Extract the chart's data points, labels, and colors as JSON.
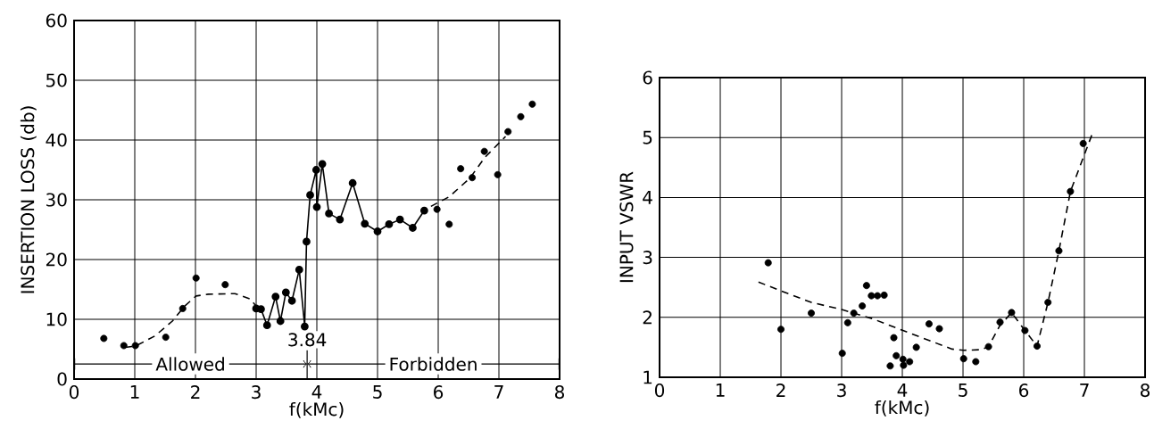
{
  "chart_data": [
    {
      "type": "line",
      "xlabel": "f(kMc)",
      "ylabel": "INSERTION LOSS (db)",
      "xlim": [
        0,
        8
      ],
      "ylim": [
        0,
        60
      ],
      "xticks": [
        0,
        1,
        2,
        3,
        4,
        5,
        6,
        7,
        8
      ],
      "yticks": [
        0,
        10,
        20,
        30,
        40,
        50,
        60
      ],
      "grid": true,
      "annotations": [
        "Allowed",
        "Forbidden"
      ],
      "ref_lines": [
        {
          "axis": "x",
          "value": 3.84,
          "label": "3.84"
        }
      ],
      "series": [
        {
          "type": "scatter",
          "color": "#000000",
          "marker": "circle",
          "x": [
            0.49,
            0.82,
            1.01,
            1.51,
            1.79,
            2.01,
            2.49,
            5.98,
            6.18,
            6.37,
            6.56,
            6.76,
            6.98,
            7.15,
            7.36,
            7.55
          ],
          "values": [
            6.8,
            5.6,
            5.6,
            7.0,
            11.8,
            16.9,
            15.8,
            28.4,
            25.9,
            35.2,
            33.7,
            38.1,
            34.2,
            41.4,
            43.9,
            46.0
          ]
        },
        {
          "color": "#000000",
          "marker": "circle",
          "line_style": "solid",
          "x": [
            3.0,
            3.08,
            3.18,
            3.32,
            3.4,
            3.49,
            3.59,
            3.71,
            3.8,
            3.83,
            3.89,
            3.99,
            4.0,
            4.09,
            4.2,
            4.38,
            4.59,
            4.79,
            5.0,
            5.19,
            5.37,
            5.58,
            5.77
          ],
          "values": [
            11.8,
            11.7,
            9.0,
            13.8,
            9.7,
            14.5,
            13.1,
            18.3,
            8.8,
            23.0,
            30.8,
            35.0,
            28.8,
            36.0,
            27.7,
            26.7,
            32.8,
            26.0,
            24.7,
            25.9,
            26.7,
            25.3,
            28.2
          ]
        },
        {
          "color": "#000000",
          "marker": "none",
          "line_style": "dashed",
          "x": [
            0.84,
            1.01,
            1.33,
            1.62,
            1.82,
            2.01,
            2.21,
            2.65,
            2.9,
            3.0
          ],
          "values": [
            5.3,
            5.5,
            7.2,
            9.7,
            12.2,
            13.9,
            14.2,
            14.3,
            13.4,
            12.2
          ]
        },
        {
          "color": "#000000",
          "marker": "none",
          "line_style": "dashed",
          "x": [
            5.88,
            6.18,
            6.52,
            6.77,
            7.11
          ],
          "values": [
            28.9,
            30.5,
            33.6,
            37.1,
            40.6
          ]
        }
      ]
    },
    {
      "type": "line",
      "xlabel": "f(kMc)",
      "ylabel": "INPUT VSWR",
      "xlim": [
        0,
        8
      ],
      "ylim": [
        1,
        6
      ],
      "xticks": [
        0,
        1,
        2,
        3,
        4,
        5,
        6,
        7,
        8
      ],
      "yticks": [
        1,
        2,
        3,
        4,
        5,
        6
      ],
      "grid": true,
      "series": [
        {
          "type": "scatter",
          "color": "#000000",
          "marker": "circle",
          "x": [
            1.79,
            2.0,
            2.5,
            3.01,
            3.1,
            3.2,
            3.34,
            3.41,
            3.49,
            3.59,
            3.7,
            3.8,
            3.86,
            3.9,
            4.01,
            4.02,
            4.12,
            4.23,
            4.44,
            4.61,
            5.01,
            5.21,
            5.42,
            5.61,
            5.8,
            6.02,
            6.22,
            6.4,
            6.58,
            6.77,
            6.98
          ],
          "values": [
            2.91,
            1.8,
            2.07,
            1.4,
            1.91,
            2.07,
            2.19,
            2.53,
            2.36,
            2.36,
            2.37,
            1.19,
            1.66,
            1.36,
            1.3,
            1.2,
            1.26,
            1.5,
            1.89,
            1.81,
            1.31,
            1.26,
            1.51,
            1.92,
            2.08,
            1.78,
            1.52,
            2.25,
            3.11,
            4.1,
            4.9
          ]
        },
        {
          "color": "#000000",
          "marker": "none",
          "line_style": "dashed",
          "x": [
            1.63,
            2.0,
            2.5,
            3.0,
            3.5,
            4.01,
            4.82,
            5.01,
            5.3,
            5.42,
            5.6,
            5.8,
            6.02,
            6.22,
            6.4,
            6.58,
            6.77,
            7.14
          ],
          "values": [
            2.59,
            2.44,
            2.25,
            2.13,
            1.98,
            1.78,
            1.47,
            1.45,
            1.46,
            1.51,
            1.85,
            2.08,
            1.78,
            1.52,
            2.25,
            3.11,
            4.1,
            5.09
          ]
        }
      ]
    }
  ]
}
